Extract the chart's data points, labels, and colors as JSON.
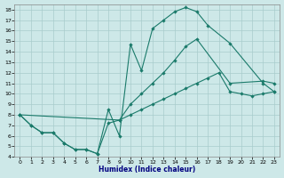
{
  "xlabel": "Humidex (Indice chaleur)",
  "bg_color": "#cde8e8",
  "grid_color": "#a8cccc",
  "line_color": "#1a7a6a",
  "xlim": [
    -0.5,
    23.5
  ],
  "ylim": [
    4,
    18.5
  ],
  "xticks": [
    0,
    1,
    2,
    3,
    4,
    5,
    6,
    7,
    8,
    9,
    10,
    11,
    12,
    13,
    14,
    15,
    16,
    17,
    18,
    19,
    20,
    21,
    22,
    23
  ],
  "yticks": [
    4,
    5,
    6,
    7,
    8,
    9,
    10,
    11,
    12,
    13,
    14,
    15,
    16,
    17,
    18
  ],
  "line_top_x": [
    0,
    1,
    2,
    3,
    4,
    5,
    6,
    7,
    8,
    9,
    10,
    11,
    12,
    13,
    14,
    15,
    16,
    17,
    19,
    22,
    23
  ],
  "line_top_y": [
    8.0,
    7.0,
    6.3,
    6.3,
    5.3,
    4.7,
    4.7,
    4.3,
    8.5,
    6.0,
    14.7,
    12.2,
    16.2,
    17.0,
    17.8,
    18.2,
    17.8,
    16.5,
    14.8,
    11.0,
    10.2
  ],
  "line_mid_x": [
    0,
    1,
    2,
    3,
    4,
    5,
    6,
    7,
    8,
    9,
    10,
    11,
    12,
    13,
    14,
    15,
    16,
    19,
    22,
    23
  ],
  "line_mid_y": [
    8.0,
    7.0,
    6.3,
    6.3,
    5.3,
    4.7,
    4.7,
    4.3,
    7.2,
    7.5,
    9.0,
    10.0,
    11.0,
    12.0,
    13.2,
    14.5,
    15.2,
    11.0,
    11.2,
    11.0
  ],
  "line_bot_x": [
    0,
    9,
    10,
    11,
    12,
    13,
    14,
    15,
    16,
    17,
    18,
    19,
    20,
    21,
    22,
    23
  ],
  "line_bot_y": [
    8.0,
    7.5,
    8.0,
    8.5,
    9.0,
    9.5,
    10.0,
    10.5,
    11.0,
    11.5,
    12.0,
    10.2,
    10.0,
    9.8,
    10.0,
    10.2
  ]
}
